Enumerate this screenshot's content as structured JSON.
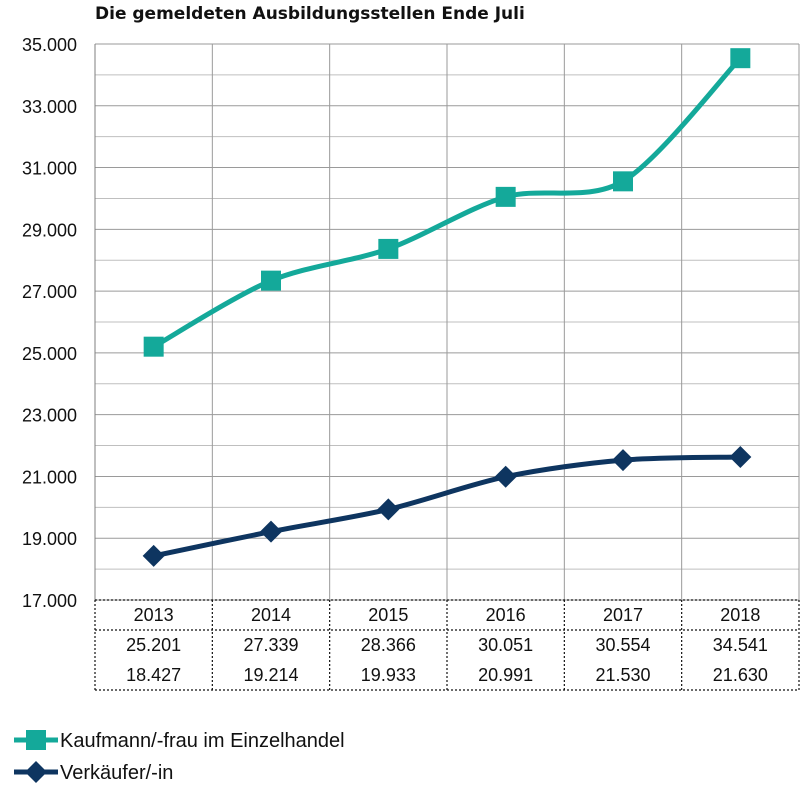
{
  "chart_data": {
    "type": "line",
    "title": "Die gemeldeten Ausbildungsstellen Ende Juli",
    "categories": [
      "2013",
      "2014",
      "2015",
      "2016",
      "2017",
      "2018"
    ],
    "series": [
      {
        "name": "Kaufmann/-frau im Einzelhandel",
        "values": [
          25201,
          27339,
          28366,
          30051,
          30554,
          34541
        ],
        "labels": [
          "25.201",
          "27.339",
          "28.366",
          "30.051",
          "30.554",
          "34.541"
        ],
        "color": "#14A99A",
        "marker": "square"
      },
      {
        "name": "Verkäufer/-in",
        "values": [
          18427,
          19214,
          19933,
          20991,
          21530,
          21630
        ],
        "labels": [
          "18.427",
          "19.214",
          "19.933",
          "20.991",
          "21.530",
          "21.630"
        ],
        "color": "#0E3560",
        "marker": "diamond"
      }
    ],
    "ylim": [
      17000,
      35000
    ],
    "yticks": [
      17000,
      19000,
      21000,
      23000,
      25000,
      27000,
      29000,
      31000,
      33000,
      35000
    ],
    "ytick_labels": [
      "17.000",
      "19.000",
      "21.000",
      "23.000",
      "25.000",
      "27.000",
      "29.000",
      "31.000",
      "33.000",
      "35.000"
    ],
    "minor_gridlines": true,
    "legend_position": "bottom-left",
    "data_table": true
  }
}
